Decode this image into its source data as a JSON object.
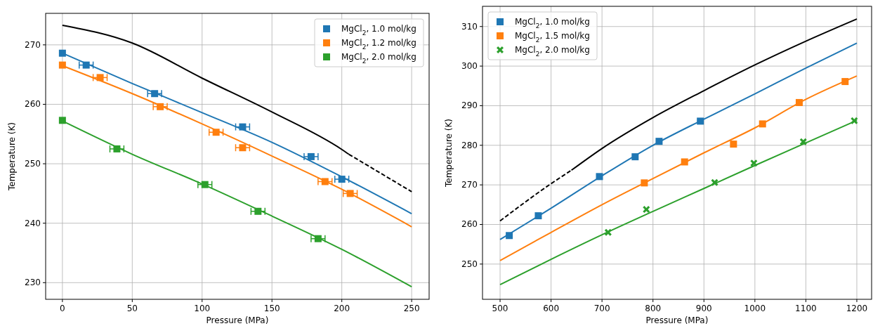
{
  "chart_data": [
    {
      "type": "scatter",
      "xlabel": "Pressure (MPa)",
      "ylabel": "Temperature (K)",
      "xlim": [
        -12,
        262.5
      ],
      "ylim": [
        227.2,
        275.3
      ],
      "xticks": [
        0,
        50,
        100,
        150,
        200,
        250
      ],
      "yticks": [
        230,
        240,
        250,
        260,
        270
      ],
      "grid": true,
      "legend": "top right",
      "series": [
        {
          "type": "line",
          "color": "#000000",
          "line_style": "solid",
          "x": [
            0,
            50,
            100,
            150,
            200,
            205
          ],
          "values": [
            273.3,
            270.3,
            264.4,
            258.7,
            252.4,
            251.6
          ]
        },
        {
          "type": "line",
          "color": "#000000",
          "line_style": "dashed",
          "x": [
            205,
            250
          ],
          "values": [
            251.6,
            245.3
          ]
        },
        {
          "type": "line",
          "color": "#1f77b4",
          "line_style": "solid",
          "x": [
            0,
            50,
            100,
            150,
            200,
            250
          ],
          "values": [
            268.6,
            263.5,
            258.6,
            253.6,
            247.8,
            241.6
          ]
        },
        {
          "type": "line",
          "color": "#ff7f0e",
          "line_style": "solid",
          "x": [
            0,
            50,
            100,
            150,
            200,
            250
          ],
          "values": [
            266.5,
            261.8,
            256.7,
            251.3,
            245.7,
            239.4
          ]
        },
        {
          "type": "line",
          "color": "#2ca02c",
          "line_style": "solid",
          "x": [
            0,
            50,
            100,
            150,
            200,
            250
          ],
          "values": [
            257.2,
            251.6,
            246.6,
            241.2,
            235.6,
            229.3
          ]
        },
        {
          "name": "MgCl$_{2}$, 1.0 mol/kg",
          "color": "#1f77b4",
          "marker": "square",
          "x": [
            0,
            17,
            66,
            129,
            178,
            200
          ],
          "values": [
            268.6,
            266.6,
            261.8,
            256.2,
            251.2,
            247.4
          ],
          "xerrors": [
            null,
            5,
            5,
            5,
            5,
            5
          ]
        },
        {
          "name": "MgCl$_{2}$, 1.2 mol/kg",
          "color": "#ff7f0e",
          "marker": "square",
          "x": [
            0,
            27,
            70,
            110,
            129,
            188,
            206
          ],
          "values": [
            266.6,
            264.5,
            259.6,
            255.3,
            252.7,
            247.0,
            245.0
          ],
          "xerrors": [
            null,
            5,
            5,
            5,
            5,
            5,
            5
          ]
        },
        {
          "name": "MgCl$_{2}$, 2.0 mol/kg",
          "color": "#2ca02c",
          "marker": "square",
          "x": [
            0,
            39,
            102,
            140,
            183
          ],
          "values": [
            257.3,
            252.5,
            246.5,
            242.0,
            237.4
          ],
          "xerrors": [
            null,
            5,
            5,
            5,
            5
          ]
        }
      ]
    },
    {
      "type": "scatter",
      "xlabel": "Pressure (MPa)",
      "ylabel": "Temperature (K)",
      "xlim": [
        465.5,
        1229
      ],
      "ylim": [
        241.1,
        315.1
      ],
      "xticks": [
        500,
        600,
        700,
        800,
        900,
        1000,
        1100,
        1200
      ],
      "yticks": [
        250,
        260,
        270,
        280,
        290,
        300,
        310
      ],
      "grid": true,
      "legend": "top left",
      "series": [
        {
          "type": "line",
          "color": "#000000",
          "line_style": "dashed",
          "x": [
            500,
            600,
            640
          ],
          "values": [
            260.9,
            270.3,
            273.7
          ]
        },
        {
          "type": "line",
          "color": "#000000",
          "line_style": "solid",
          "x": [
            640,
            700,
            800,
            900,
            1000,
            1100,
            1200
          ],
          "values": [
            273.7,
            279.2,
            287.0,
            293.8,
            300.3,
            306.3,
            311.9
          ]
        },
        {
          "type": "line",
          "color": "#1f77b4",
          "line_style": "solid",
          "x": [
            500,
            600,
            700,
            800,
            900,
            1000,
            1100,
            1200
          ],
          "values": [
            256.2,
            264.1,
            272.3,
            280.0,
            286.6,
            293.0,
            299.5,
            305.8
          ]
        },
        {
          "type": "line",
          "color": "#ff7f0e",
          "line_style": "solid",
          "x": [
            500,
            600,
            700,
            800,
            900,
            1000,
            1100,
            1200
          ],
          "values": [
            250.9,
            258.0,
            265.0,
            271.6,
            278.1,
            284.4,
            291.6,
            297.5
          ]
        },
        {
          "type": "line",
          "color": "#2ca02c",
          "line_style": "solid",
          "x": [
            500,
            600,
            700,
            800,
            900,
            1000,
            1100,
            1200
          ],
          "values": [
            244.8,
            251.2,
            257.4,
            263.3,
            269.1,
            274.9,
            280.6,
            286.3
          ]
        },
        {
          "name": "MgCl$_{2}$, 1.0 mol/kg",
          "color": "#1f77b4",
          "marker": "square",
          "x": [
            518,
            575,
            695,
            765,
            812,
            893
          ],
          "values": [
            257.2,
            262.2,
            272.1,
            277.1,
            281.0,
            286.1
          ]
        },
        {
          "name": "MgCl$_{2}$, 1.5 mol/kg",
          "color": "#ff7f0e",
          "marker": "square",
          "x": [
            783,
            862,
            958,
            1015,
            1087,
            1177
          ],
          "values": [
            270.5,
            275.8,
            280.3,
            285.4,
            290.8,
            296.1
          ]
        },
        {
          "name": "MgCl$_{2}$, 2.0 mol/kg",
          "color": "#2ca02c",
          "marker": "cross",
          "x": [
            712,
            787,
            921,
            998,
            1095,
            1195
          ],
          "values": [
            258.0,
            263.8,
            270.6,
            275.5,
            280.9,
            286.2
          ]
        }
      ]
    }
  ]
}
